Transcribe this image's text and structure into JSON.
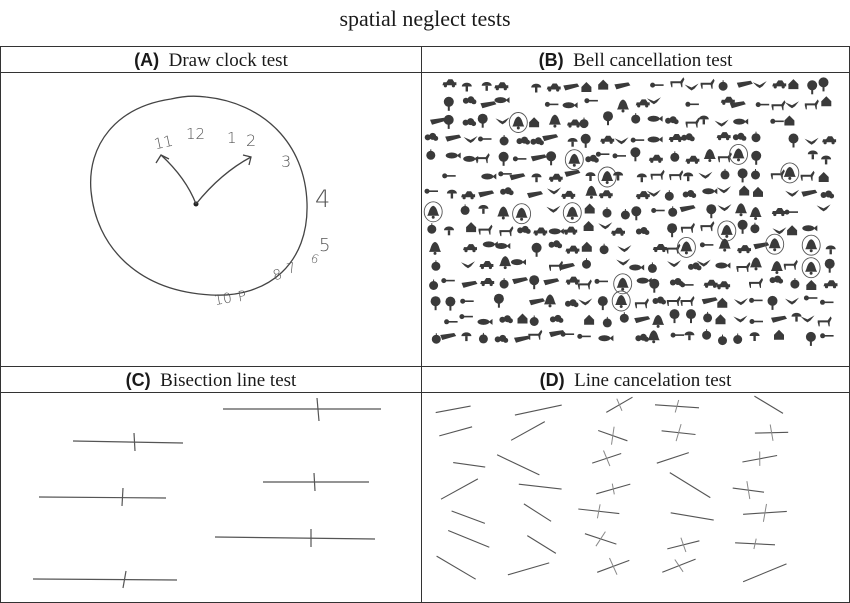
{
  "title": "spatial neglect tests",
  "panels": {
    "a": {
      "letter": "(A)",
      "name": "Draw clock test",
      "clock_numbers": [
        "11",
        "12",
        "1",
        "2",
        "3",
        "4",
        "5",
        "6",
        "8",
        "7",
        "10",
        "P"
      ]
    },
    "b": {
      "letter": "(B)",
      "name": "Bell cancellation test"
    },
    "c": {
      "letter": "(C)",
      "name": "Bisection line test"
    },
    "d": {
      "letter": "(D)",
      "name": "Line cancelation test"
    }
  }
}
